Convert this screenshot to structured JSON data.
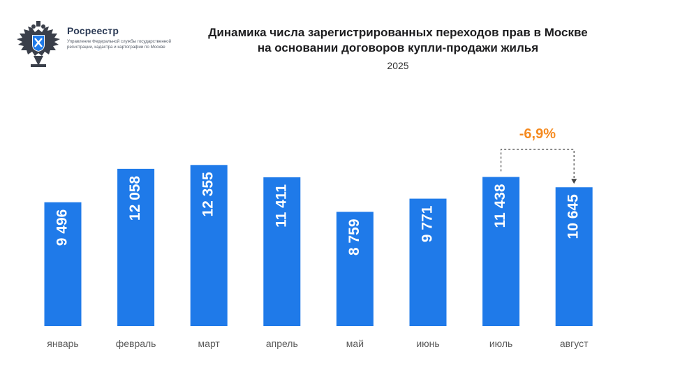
{
  "header": {
    "org_name": "Росреестр",
    "org_sub": "Управление Федеральной службы государственной регистрации, кадастра и картографии по Москве",
    "title_line1": "Динамика числа зарегистрированных переходов прав в Москве",
    "title_line2": "на основании договоров купли-продажи жилья",
    "subtitle": "2025"
  },
  "colors": {
    "bar": "#1f7ae9",
    "annotation": "#f58a1f"
  },
  "icons": {
    "logo": "double-headed-eagle-emblem"
  },
  "chart_data": {
    "type": "bar",
    "title": "Динамика числа зарегистрированных переходов прав в Москве на основании договоров купли-продажи жилья",
    "subtitle": "2025",
    "categories": [
      "январь",
      "февраль",
      "март",
      "апрель",
      "май",
      "июнь",
      "июль",
      "август"
    ],
    "values": [
      9496,
      12058,
      12355,
      11411,
      8759,
      9771,
      11438,
      10645
    ],
    "value_labels": [
      "9 496",
      "12 058",
      "12 355",
      "11 411",
      "8 759",
      "9 771",
      "11 438",
      "10 645"
    ],
    "xlabel": "",
    "ylabel": "",
    "ylim": [
      0,
      12800
    ],
    "grid": false,
    "annotation": {
      "text": "-6,9%",
      "from": "июль",
      "to": "август"
    }
  }
}
